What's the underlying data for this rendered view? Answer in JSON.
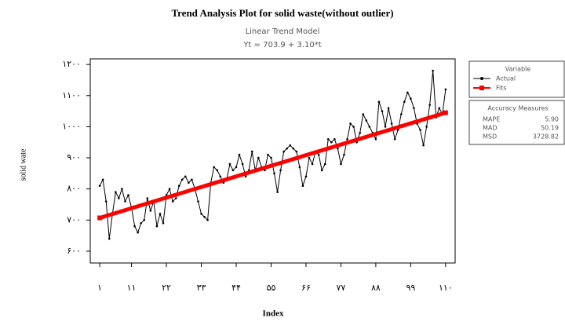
{
  "chart_data": {
    "type": "line",
    "title": "Trend Analysis Plot for solid waste(without outlier)",
    "subtitle": "Linear Trend Model",
    "equation": "Yt = 703.9 + 3.10*t",
    "x_label": "Index",
    "y_label": "solid wate",
    "legend_title": "Variable",
    "xlim": [
      -2,
      113
    ],
    "ylim": [
      562,
      1218
    ],
    "xticks": [
      {
        "value": 1,
        "label": "۱"
      },
      {
        "value": 11,
        "label": "۱۱"
      },
      {
        "value": 22,
        "label": "۲۲"
      },
      {
        "value": 33,
        "label": "۳۳"
      },
      {
        "value": 44,
        "label": "۴۴"
      },
      {
        "value": 55,
        "label": "۵۵"
      },
      {
        "value": 66,
        "label": "۶۶"
      },
      {
        "value": 77,
        "label": "۷۷"
      },
      {
        "value": 88,
        "label": "۸۸"
      },
      {
        "value": 99,
        "label": "۹۹"
      },
      {
        "value": 110,
        "label": "۱۱۰"
      }
    ],
    "yticks": [
      {
        "value": 600,
        "label": "۶۰۰"
      },
      {
        "value": 700,
        "label": "۷۰۰"
      },
      {
        "value": 800,
        "label": "۸۰۰"
      },
      {
        "value": 900,
        "label": "۹۰۰"
      },
      {
        "value": 1000,
        "label": "۱۰۰۰"
      },
      {
        "value": 1100,
        "label": "۱۱۰۰"
      },
      {
        "value": 1200,
        "label": "۱۲۰۰"
      }
    ],
    "series": [
      {
        "name": "Actual",
        "color": "#000000",
        "x": [
          1,
          2,
          3,
          4,
          5,
          6,
          7,
          8,
          9,
          10,
          11,
          12,
          13,
          14,
          15,
          16,
          17,
          18,
          19,
          20,
          21,
          22,
          23,
          24,
          25,
          26,
          27,
          28,
          29,
          30,
          31,
          32,
          33,
          34,
          35,
          36,
          37,
          38,
          39,
          40,
          41,
          42,
          43,
          44,
          45,
          46,
          47,
          48,
          49,
          50,
          51,
          52,
          53,
          54,
          55,
          56,
          57,
          58,
          59,
          60,
          61,
          62,
          63,
          64,
          65,
          66,
          67,
          68,
          69,
          70,
          71,
          72,
          73,
          74,
          75,
          76,
          77,
          78,
          79,
          80,
          81,
          82,
          83,
          84,
          85,
          86,
          87,
          88,
          89,
          90,
          91,
          92,
          93,
          94,
          95,
          96,
          97,
          98,
          99,
          100,
          101,
          102,
          103,
          104,
          105,
          106,
          107,
          108,
          109,
          110
        ],
        "values": [
          810,
          830,
          760,
          640,
          720,
          790,
          770,
          800,
          760,
          780,
          740,
          680,
          660,
          690,
          700,
          770,
          730,
          760,
          680,
          720,
          690,
          780,
          800,
          760,
          770,
          810,
          830,
          840,
          820,
          830,
          800,
          760,
          720,
          710,
          700,
          820,
          870,
          860,
          840,
          820,
          830,
          880,
          860,
          870,
          910,
          880,
          840,
          860,
          920,
          860,
          900,
          870,
          860,
          910,
          900,
          850,
          790,
          860,
          920,
          930,
          940,
          930,
          920,
          870,
          810,
          840,
          900,
          880,
          920,
          910,
          860,
          880,
          960,
          950,
          960,
          930,
          880,
          910,
          960,
          1010,
          1000,
          950,
          980,
          1040,
          1020,
          1000,
          980,
          960,
          1080,
          1050,
          1000,
          1060,
          1010,
          960,
          990,
          1040,
          1080,
          1110,
          1090,
          1060,
          1010,
          990,
          940,
          1000,
          1070,
          1180,
          1030,
          1060,
          1040,
          1120
        ]
      },
      {
        "name": "Fits",
        "color": "#ff0000",
        "x": [
          1,
          110
        ],
        "values": [
          707.0,
          1044.9
        ]
      }
    ],
    "accuracy_title": "Accuracy Measures",
    "accuracy_measures": [
      {
        "name": "MAPE",
        "value": "5.90"
      },
      {
        "name": "MAD",
        "value": "50.19"
      },
      {
        "name": "MSD",
        "value": "3728.82"
      }
    ]
  }
}
